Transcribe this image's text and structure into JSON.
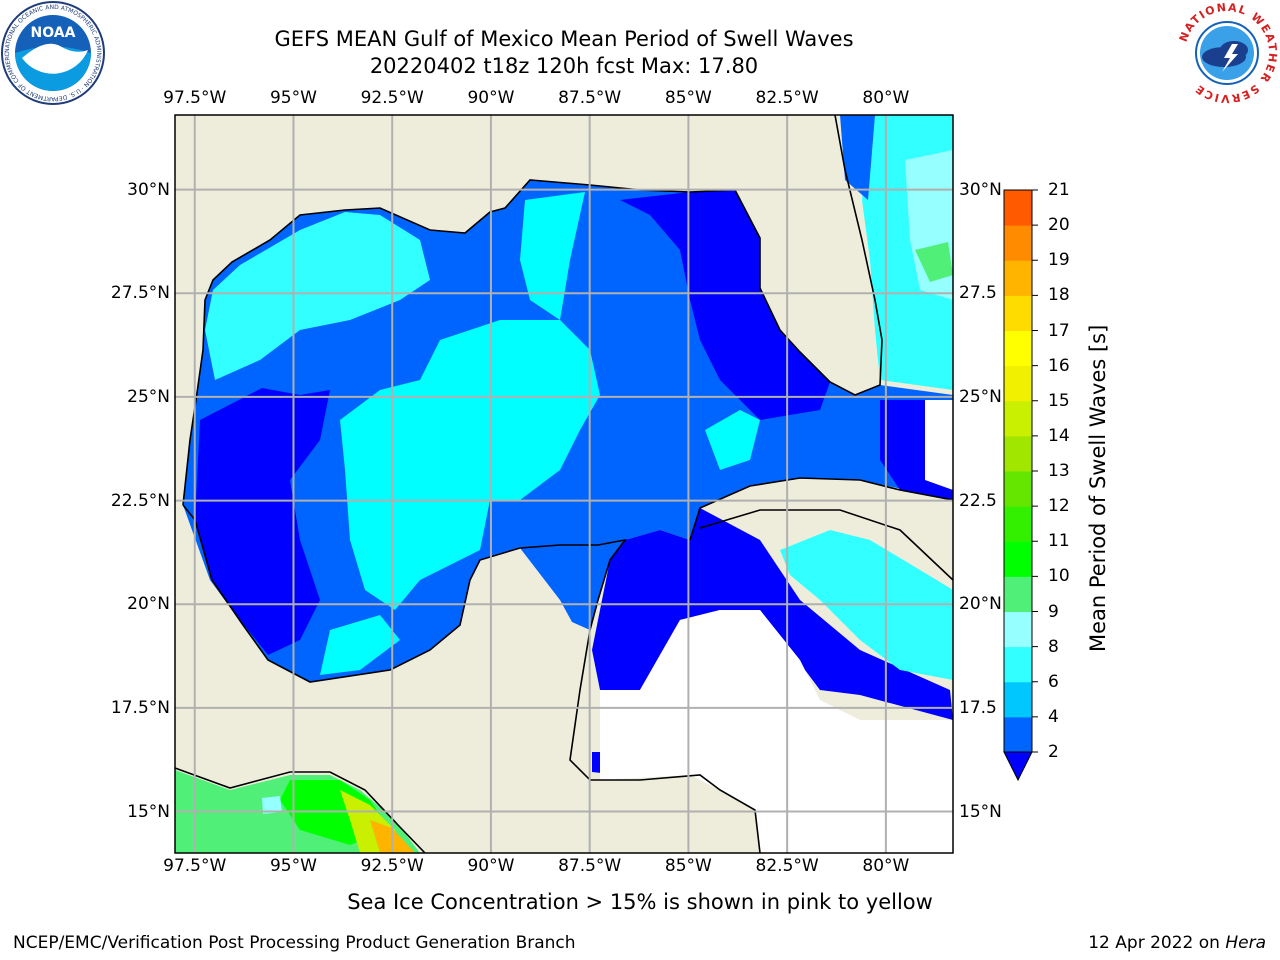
{
  "title_line1": "GEFS MEAN Gulf of Mexico Mean Period of Swell Waves",
  "title_line2": "20220402 t18z 120h fcst   Max: 17.80",
  "noaa_logo_text": "NOAA",
  "noaa_ring_text": "NATIONAL OCEANIC AND ATMOSPHERIC ADMINISTRATION · U.S. DEPARTMENT OF COMMERCE",
  "nws_ring_text": "NATIONAL WEATHER SERVICE",
  "map": {
    "extent": {
      "lon_min": -98.0,
      "lon_max": -78.3,
      "lat_min": 14.0,
      "lat_max": 31.8
    },
    "lon_ticks": [
      {
        "lon": -97.5,
        "label": "97.5°W"
      },
      {
        "lon": -95.0,
        "label": "95°W"
      },
      {
        "lon": -92.5,
        "label": "92.5°W"
      },
      {
        "lon": -90.0,
        "label": "90°W"
      },
      {
        "lon": -87.5,
        "label": "87.5°W"
      },
      {
        "lon": -85.0,
        "label": "85°W"
      },
      {
        "lon": -82.5,
        "label": "82.5°W"
      },
      {
        "lon": -80.0,
        "label": "80°W"
      }
    ],
    "lat_ticks_left": [
      {
        "lat": 30.0,
        "label": "30°N"
      },
      {
        "lat": 27.5,
        "label": "27.5°N"
      },
      {
        "lat": 25.0,
        "label": "25°N"
      },
      {
        "lat": 22.5,
        "label": "22.5°N"
      },
      {
        "lat": 20.0,
        "label": "20°N"
      },
      {
        "lat": 17.5,
        "label": "17.5°N"
      },
      {
        "lat": 15.0,
        "label": "15°N"
      }
    ],
    "lat_ticks_right": [
      {
        "lat": 30.0,
        "label": "30°N"
      },
      {
        "lat": 27.5,
        "label": "27.5"
      },
      {
        "lat": 25.0,
        "label": "25°N"
      },
      {
        "lat": 22.5,
        "label": "22.5"
      },
      {
        "lat": 20.0,
        "label": "20°N"
      },
      {
        "lat": 17.5,
        "label": "17.5"
      },
      {
        "lat": 15.0,
        "label": "15°N"
      }
    ],
    "colors": {
      "land": "#eeeddc",
      "grid": "#b0b0b0",
      "coast": "#000000",
      "nodata": "#ffffff"
    }
  },
  "colorbar": {
    "label": "Mean Period of Swell Waves [s]",
    "ticks": [
      "2",
      "4",
      "6",
      "8",
      "9",
      "10",
      "11",
      "12",
      "13",
      "14",
      "15",
      "16",
      "17",
      "18",
      "19",
      "20",
      "21"
    ],
    "colors": [
      "#0064ff",
      "#00c8ff",
      "#32ffff",
      "#96ffff",
      "#50f078",
      "#00ff00",
      "#32f000",
      "#64e600",
      "#a0e600",
      "#c8f000",
      "#f0f000",
      "#ffff00",
      "#ffdc00",
      "#ffb400",
      "#ff8c00",
      "#ff5a00",
      "#ff2800",
      "#ff0000"
    ],
    "extend_color": "#0000ff"
  },
  "footnote": "Sea Ice Concentration > 15% is shown in pink to yellow",
  "footer_left": "NCEP/EMC/Verification Post Processing Product Generation Branch",
  "footer_right_prefix": "12 Apr 2022 on ",
  "footer_right_host": "Hera"
}
